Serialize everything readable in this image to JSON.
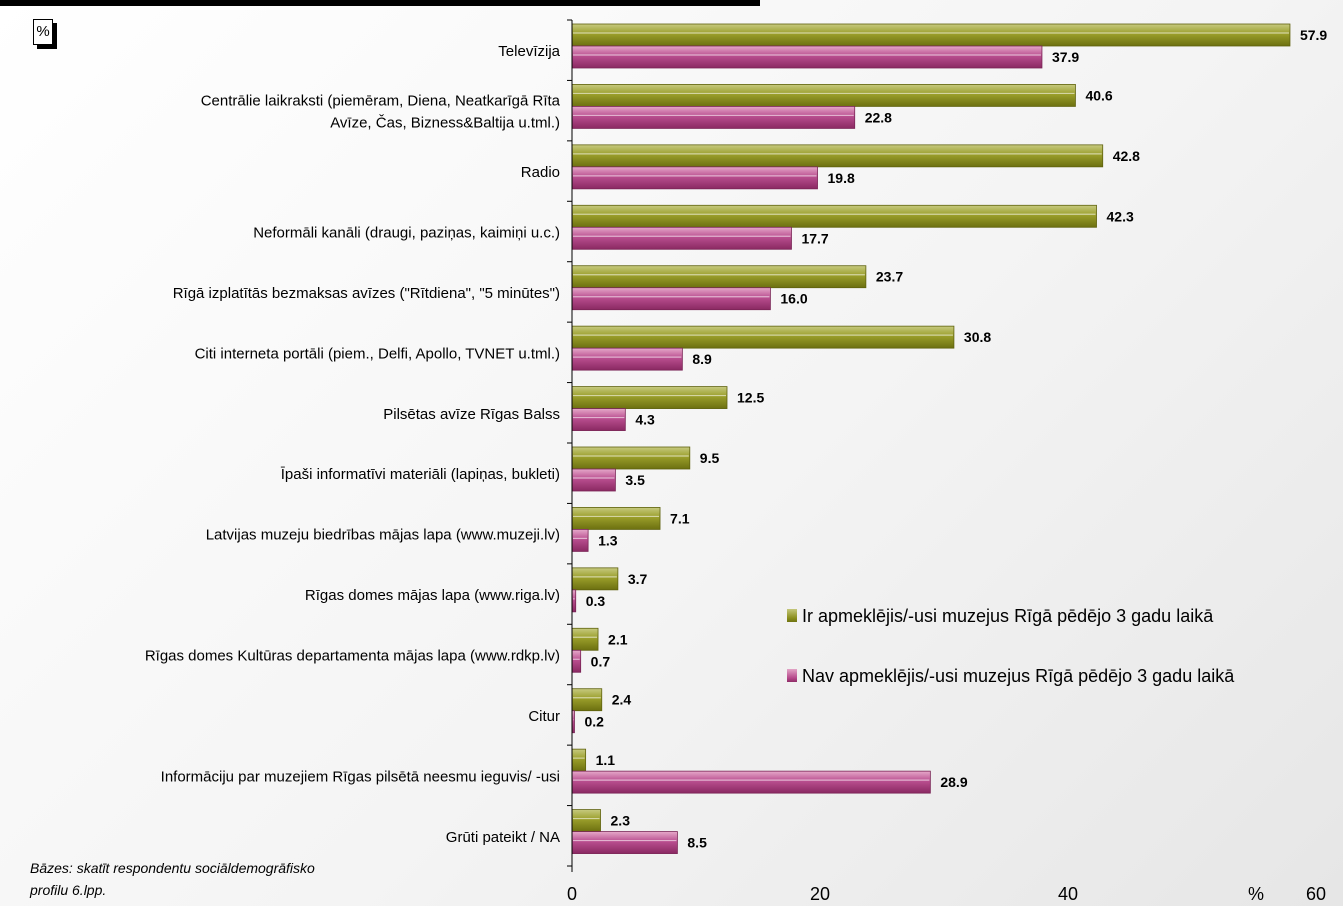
{
  "unit_label": "%",
  "footnote": "Bāzes: skatīt respondentu sociāldemogrāfisko profilu 6.lpp.",
  "colors": {
    "series_a": "#8e921f",
    "series_b": "#b5488a"
  },
  "chart_data": {
    "type": "bar",
    "orientation": "horizontal",
    "title": "",
    "xlabel": "%",
    "ylabel": "",
    "xlim": [
      0,
      60
    ],
    "x_ticks": [
      0,
      20,
      40,
      60
    ],
    "grid": false,
    "legend_position": "bottom-right",
    "categories": [
      "Televīzija",
      "Centrālie laikraksti (piemēram, Diena, Neatkarīgā Rīta Avīze, Čas, Bizness&Baltija u.tml.)",
      "Radio",
      "Neformāli kanāli (draugi, paziņas, kaimiņi u.c.)",
      "Rīgā izplatītās bezmaksas avīzes (\"Rītdiena\", \"5 minūtes\")",
      "Citi interneta portāli (piem., Delfi, Apollo, TVNET u.tml.)",
      "Pilsētas avīze Rīgas Balss",
      "Īpaši informatīvi materiāli (lapiņas, bukleti)",
      "Latvijas muzeju biedrības mājas lapa (www.muzeji.lv)",
      "Rīgas domes mājas lapa (www.riga.lv)",
      "Rīgas domes Kultūras departamenta mājas lapa (www.rdkp.lv)",
      "Citur",
      "Informāciju par muzejiem Rīgas pilsētā neesmu ieguvis/ -usi",
      "Grūti pateikt / NA"
    ],
    "series": [
      {
        "name": "Ir apmeklējis/-usi muzejus Rīgā pēdējo 3 gadu laikā",
        "values": [
          57.9,
          40.6,
          42.8,
          42.3,
          23.7,
          30.8,
          12.5,
          9.5,
          7.1,
          3.7,
          2.1,
          2.4,
          1.1,
          2.3
        ]
      },
      {
        "name": "Nav apmeklējis/-usi muzejus Rīgā pēdējo 3 gadu laikā",
        "values": [
          37.9,
          22.8,
          19.8,
          17.7,
          16.0,
          8.9,
          4.3,
          3.5,
          1.3,
          0.3,
          0.7,
          0.2,
          28.9,
          8.5
        ]
      }
    ]
  }
}
